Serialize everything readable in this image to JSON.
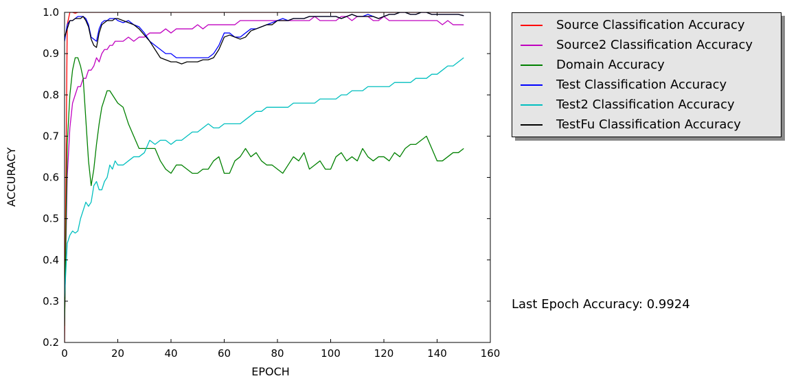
{
  "chart_data": {
    "type": "line",
    "xlabel": "EPOCH",
    "ylabel": "ACCURACY",
    "xlim": [
      0,
      160
    ],
    "ylim": [
      0.2,
      1.0
    ],
    "xticks": [
      "0",
      "20",
      "40",
      "60",
      "80",
      "100",
      "120",
      "140",
      "160"
    ],
    "yticks": [
      "0.2",
      "0.3",
      "0.4",
      "0.5",
      "0.6",
      "0.7",
      "0.8",
      "0.9",
      "1.0"
    ],
    "grid": false,
    "legend_position": "outside-top-right",
    "x": [
      0,
      1,
      2,
      3,
      4,
      5,
      6,
      7,
      8,
      9,
      10,
      11,
      12,
      13,
      14,
      15,
      16,
      17,
      18,
      19,
      20,
      22,
      24,
      26,
      28,
      30,
      32,
      34,
      36,
      38,
      40,
      42,
      44,
      46,
      48,
      50,
      52,
      54,
      56,
      58,
      60,
      62,
      64,
      66,
      68,
      70,
      72,
      74,
      76,
      78,
      80,
      82,
      84,
      86,
      88,
      90,
      92,
      94,
      96,
      98,
      100,
      102,
      104,
      106,
      108,
      110,
      112,
      114,
      116,
      118,
      120,
      122,
      124,
      126,
      128,
      130,
      132,
      134,
      136,
      138,
      140,
      142,
      144,
      146,
      148,
      150
    ],
    "series": [
      {
        "name": "Source Classification Accuracy",
        "color": "#ff0000",
        "values": [
          0.2,
          0.97,
          1.0,
          1.0,
          0.998,
          1.0,
          1.0,
          1.0,
          1.0,
          1.0,
          1.0,
          1.0,
          1.0,
          1.0,
          1.0,
          1.0,
          1.0,
          1.0,
          1.0,
          1.0,
          1.0,
          1.0,
          1.0,
          1.0,
          1.0,
          1.0,
          1.0,
          1.0,
          1.0,
          1.0,
          1.0,
          1.0,
          1.0,
          1.0,
          1.0,
          1.0,
          1.0,
          1.0,
          1.0,
          1.0,
          1.0,
          1.0,
          1.0,
          1.0,
          1.0,
          1.0,
          1.0,
          1.0,
          1.0,
          1.0,
          1.0,
          1.0,
          1.0,
          1.0,
          1.0,
          1.0,
          1.0,
          1.0,
          1.0,
          1.0,
          1.0,
          1.0,
          1.0,
          1.0,
          1.0,
          1.0,
          1.0,
          1.0,
          1.0,
          1.0,
          1.0,
          1.0,
          1.0,
          1.0,
          1.0,
          1.0,
          1.0,
          1.0,
          1.0,
          1.0,
          1.0,
          1.0,
          1.0,
          1.0,
          1.0,
          1.0
        ]
      },
      {
        "name": "Source2 Classification Accuracy",
        "color": "#bf00bf",
        "values": [
          0.25,
          0.6,
          0.72,
          0.78,
          0.8,
          0.82,
          0.82,
          0.84,
          0.84,
          0.86,
          0.86,
          0.87,
          0.89,
          0.88,
          0.9,
          0.91,
          0.91,
          0.92,
          0.92,
          0.93,
          0.93,
          0.93,
          0.94,
          0.93,
          0.94,
          0.94,
          0.95,
          0.95,
          0.95,
          0.96,
          0.95,
          0.96,
          0.96,
          0.96,
          0.96,
          0.97,
          0.96,
          0.97,
          0.97,
          0.97,
          0.97,
          0.97,
          0.97,
          0.98,
          0.98,
          0.98,
          0.98,
          0.98,
          0.98,
          0.98,
          0.98,
          0.98,
          0.98,
          0.98,
          0.98,
          0.98,
          0.98,
          0.99,
          0.98,
          0.98,
          0.98,
          0.98,
          0.99,
          0.99,
          0.98,
          0.99,
          0.99,
          0.99,
          0.98,
          0.98,
          0.99,
          0.98,
          0.98,
          0.98,
          0.98,
          0.98,
          0.98,
          0.98,
          0.98,
          0.98,
          0.98,
          0.97,
          0.98,
          0.97,
          0.97,
          0.97
        ]
      },
      {
        "name": "Domain Accuracy",
        "color": "#008000",
        "values": [
          0.24,
          0.68,
          0.8,
          0.86,
          0.89,
          0.89,
          0.87,
          0.84,
          0.74,
          0.64,
          0.58,
          0.62,
          0.68,
          0.73,
          0.77,
          0.79,
          0.81,
          0.81,
          0.8,
          0.79,
          0.78,
          0.77,
          0.73,
          0.7,
          0.67,
          0.67,
          0.67,
          0.67,
          0.64,
          0.62,
          0.61,
          0.63,
          0.63,
          0.62,
          0.61,
          0.61,
          0.62,
          0.62,
          0.64,
          0.65,
          0.61,
          0.61,
          0.64,
          0.65,
          0.67,
          0.65,
          0.66,
          0.64,
          0.63,
          0.63,
          0.62,
          0.61,
          0.63,
          0.65,
          0.64,
          0.66,
          0.62,
          0.63,
          0.64,
          0.62,
          0.62,
          0.65,
          0.66,
          0.64,
          0.65,
          0.64,
          0.67,
          0.65,
          0.64,
          0.65,
          0.65,
          0.64,
          0.66,
          0.65,
          0.67,
          0.68,
          0.68,
          0.69,
          0.7,
          0.67,
          0.64,
          0.64,
          0.65,
          0.66,
          0.66,
          0.67
        ]
      },
      {
        "name": "Test Classification Accuracy",
        "color": "#0000ff",
        "values": [
          0.93,
          0.97,
          0.98,
          0.98,
          0.985,
          0.99,
          0.99,
          0.99,
          0.985,
          0.97,
          0.94,
          0.935,
          0.93,
          0.96,
          0.975,
          0.98,
          0.98,
          0.985,
          0.985,
          0.985,
          0.98,
          0.975,
          0.98,
          0.97,
          0.965,
          0.95,
          0.93,
          0.92,
          0.91,
          0.9,
          0.9,
          0.89,
          0.89,
          0.89,
          0.89,
          0.89,
          0.89,
          0.89,
          0.9,
          0.92,
          0.95,
          0.95,
          0.94,
          0.94,
          0.95,
          0.96,
          0.96,
          0.965,
          0.97,
          0.975,
          0.98,
          0.985,
          0.98,
          0.985,
          0.985,
          0.985,
          0.99,
          0.99,
          0.99,
          0.99,
          0.99,
          0.99,
          0.985,
          0.99,
          0.995,
          0.99,
          0.99,
          0.995,
          0.99,
          0.985,
          0.99,
          0.995,
          0.995,
          1.0,
          1.0,
          0.995,
          0.995,
          1.0,
          1.0,
          0.995,
          0.995,
          0.995,
          0.995,
          0.995,
          0.995,
          0.992
        ]
      },
      {
        "name": "Test2 Classification Accuracy",
        "color": "#00bfbf",
        "values": [
          0.31,
          0.44,
          0.46,
          0.47,
          0.465,
          0.47,
          0.5,
          0.52,
          0.54,
          0.53,
          0.54,
          0.58,
          0.59,
          0.57,
          0.57,
          0.59,
          0.6,
          0.63,
          0.62,
          0.64,
          0.63,
          0.63,
          0.64,
          0.65,
          0.65,
          0.66,
          0.69,
          0.68,
          0.69,
          0.69,
          0.68,
          0.69,
          0.69,
          0.7,
          0.71,
          0.71,
          0.72,
          0.73,
          0.72,
          0.72,
          0.73,
          0.73,
          0.73,
          0.73,
          0.74,
          0.75,
          0.76,
          0.76,
          0.77,
          0.77,
          0.77,
          0.77,
          0.77,
          0.78,
          0.78,
          0.78,
          0.78,
          0.78,
          0.79,
          0.79,
          0.79,
          0.79,
          0.8,
          0.8,
          0.81,
          0.81,
          0.81,
          0.82,
          0.82,
          0.82,
          0.82,
          0.82,
          0.83,
          0.83,
          0.83,
          0.83,
          0.84,
          0.84,
          0.84,
          0.85,
          0.85,
          0.86,
          0.87,
          0.87,
          0.88,
          0.89
        ]
      },
      {
        "name": "TestFu Classification Accuracy",
        "color": "#000000",
        "values": [
          0.94,
          0.96,
          0.98,
          0.98,
          0.985,
          0.985,
          0.985,
          0.99,
          0.98,
          0.965,
          0.935,
          0.92,
          0.915,
          0.95,
          0.97,
          0.975,
          0.98,
          0.98,
          0.98,
          0.985,
          0.985,
          0.98,
          0.975,
          0.97,
          0.96,
          0.945,
          0.93,
          0.91,
          0.89,
          0.885,
          0.88,
          0.88,
          0.875,
          0.88,
          0.88,
          0.88,
          0.885,
          0.885,
          0.89,
          0.91,
          0.94,
          0.945,
          0.94,
          0.935,
          0.94,
          0.955,
          0.96,
          0.965,
          0.97,
          0.97,
          0.98,
          0.98,
          0.98,
          0.985,
          0.985,
          0.985,
          0.99,
          0.99,
          0.99,
          0.99,
          0.99,
          0.99,
          0.985,
          0.99,
          0.995,
          0.99,
          0.99,
          0.99,
          0.99,
          0.985,
          0.99,
          0.995,
          0.995,
          1.0,
          1.0,
          0.995,
          0.995,
          1.0,
          1.0,
          0.995,
          0.995,
          0.995,
          0.995,
          0.995,
          0.995,
          0.992
        ]
      }
    ]
  },
  "annotation_text": "Last Epoch Accuracy: 0.9924"
}
